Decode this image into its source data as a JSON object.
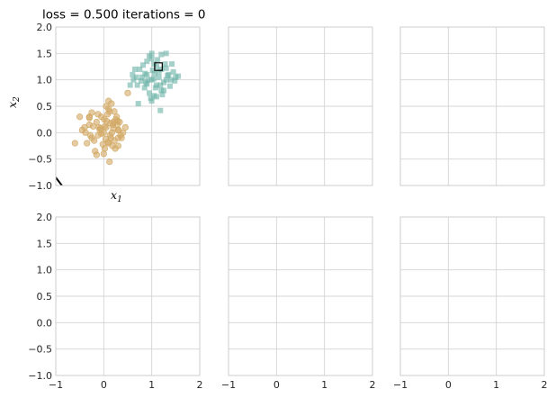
{
  "figure": {
    "title": "loss = 0.500 iterations = 0"
  },
  "colors": {
    "class0": "#d2a964",
    "class1": "#6ab3a6",
    "boundary": "#000000",
    "grid": "#d4d4d4",
    "frame": "#cccccc"
  },
  "chart_data": {
    "type": "scatter",
    "layout": "2x3 grid of subplots",
    "title": "loss = 0.500 iterations = 0",
    "xlabel": "x1",
    "ylabel": "x2",
    "xlim": [
      -1,
      2
    ],
    "ylim": [
      -1,
      2
    ],
    "xticks": [
      "−1",
      "0",
      "1",
      "2"
    ],
    "yticks": [
      "−1.0",
      "−0.5",
      "0.0",
      "0.5",
      "1.0",
      "1.5",
      "2.0"
    ],
    "grid": true,
    "panels": [
      {
        "id": "top-left",
        "has_data": true,
        "show_xticks": false,
        "show_yticks": true,
        "show_title": true,
        "show_xlabel": true,
        "show_ylabel": true
      },
      {
        "id": "top-middle",
        "has_data": false,
        "show_xticks": false,
        "show_yticks": false
      },
      {
        "id": "top-right",
        "has_data": false,
        "show_xticks": false,
        "show_yticks": false
      },
      {
        "id": "bottom-left",
        "has_data": false,
        "show_xticks": true,
        "show_yticks": true
      },
      {
        "id": "bottom-middle",
        "has_data": false,
        "show_xticks": true,
        "show_yticks": false
      },
      {
        "id": "bottom-right",
        "has_data": false,
        "show_xticks": true,
        "show_yticks": false
      }
    ],
    "series": [
      {
        "marker": "circle",
        "x": [
          0.05,
          -0.12,
          0.2,
          -0.3,
          0.1,
          0.3,
          -0.05,
          0.15,
          -0.2,
          0.0,
          0.25,
          -0.4,
          0.35,
          0.08,
          -0.15,
          0.18,
          -0.25,
          0.12,
          0.02,
          -0.08,
          0.28,
          -0.35,
          0.4,
          0.22,
          -0.1,
          0.06,
          -0.3,
          0.14,
          0.3,
          -0.18,
          0.1,
          -0.05,
          0.2,
          0.0,
          -0.22,
          0.17,
          0.05,
          -0.45,
          0.27,
          0.33,
          -0.02,
          0.13,
          -0.12,
          0.19,
          0.09,
          -0.28,
          0.24,
          0.01,
          -0.07,
          0.31,
          0.5,
          0.02,
          -0.6,
          0.3,
          -0.5,
          -0.3,
          0.12,
          0.1,
          -0.38,
          0.45,
          -0.15,
          0.22,
          0.04,
          -0.25,
          0.16,
          0.37,
          0.29
        ],
        "y": [
          0.1,
          -0.05,
          0.2,
          0.15,
          -0.2,
          0.05,
          0.3,
          -0.1,
          -0.15,
          0.0,
          0.25,
          0.1,
          -0.05,
          0.35,
          0.2,
          -0.25,
          -0.1,
          0.4,
          -0.3,
          0.05,
          0.15,
          -0.2,
          0.0,
          -0.15,
          0.1,
          0.22,
          0.28,
          0.18,
          -0.1,
          -0.35,
          0.45,
          -0.02,
          0.08,
          -0.4,
          0.12,
          0.0,
          0.5,
          0.05,
          0.3,
          0.2,
          -0.22,
          -0.05,
          0.35,
          0.15,
          -0.18,
          -0.05,
          -0.3,
          0.25,
          0.08,
          0.05,
          0.75,
          0.12,
          -0.2,
          -0.25,
          0.3,
          0.3,
          -0.55,
          0.6,
          0.0,
          0.1,
          -0.42,
          0.4,
          -0.12,
          0.38,
          0.55,
          -0.1,
          0.22
        ]
      },
      {
        "marker": "square",
        "x": [
          1.0,
          1.1,
          0.9,
          1.2,
          0.85,
          1.05,
          1.3,
          0.95,
          1.15,
          0.8,
          1.25,
          1.0,
          0.7,
          1.4,
          1.1,
          0.9,
          1.2,
          1.05,
          0.75,
          1.35,
          1.0,
          1.15,
          0.88,
          1.28,
          0.95,
          1.08,
          0.68,
          1.45,
          1.18,
          0.92,
          1.02,
          1.22,
          0.82,
          1.12,
          1.38,
          0.98,
          1.3,
          0.78,
          1.06,
          1.5,
          0.6,
          1.55,
          1.3,
          0.55,
          1.2,
          1.0,
          1.25,
          0.65,
          1.42,
          1.1,
          0.9,
          1.48,
          0.72,
          0.62,
          1.18,
          1.33,
          1.04,
          0.86
        ],
        "y": [
          1.0,
          0.9,
          1.1,
          1.2,
          0.85,
          1.3,
          1.0,
          0.75,
          1.15,
          1.05,
          0.95,
          1.4,
          0.9,
          1.0,
          1.25,
          1.35,
          0.8,
          0.7,
          1.2,
          1.1,
          0.6,
          1.05,
          0.95,
          1.3,
          1.45,
          0.85,
          1.05,
          1.15,
          0.9,
          1.0,
          1.18,
          0.72,
          1.28,
          1.38,
          0.88,
          0.65,
          1.22,
          0.98,
          1.12,
          1.05,
          1.1,
          1.07,
          1.5,
          0.9,
          1.48,
          1.5,
          0.8,
          1.2,
          1.3,
          0.68,
          0.92,
          0.98,
          0.55,
          1.0,
          0.42,
          1.08,
          1.02,
          1.12
        ]
      }
    ],
    "highlighted_point": {
      "x": 1.14,
      "y": 1.25,
      "marker": "square-outline"
    },
    "decision_boundary": {
      "x": [
        -1.05,
        -0.83
      ],
      "y": [
        -0.79,
        -1.05
      ]
    }
  }
}
